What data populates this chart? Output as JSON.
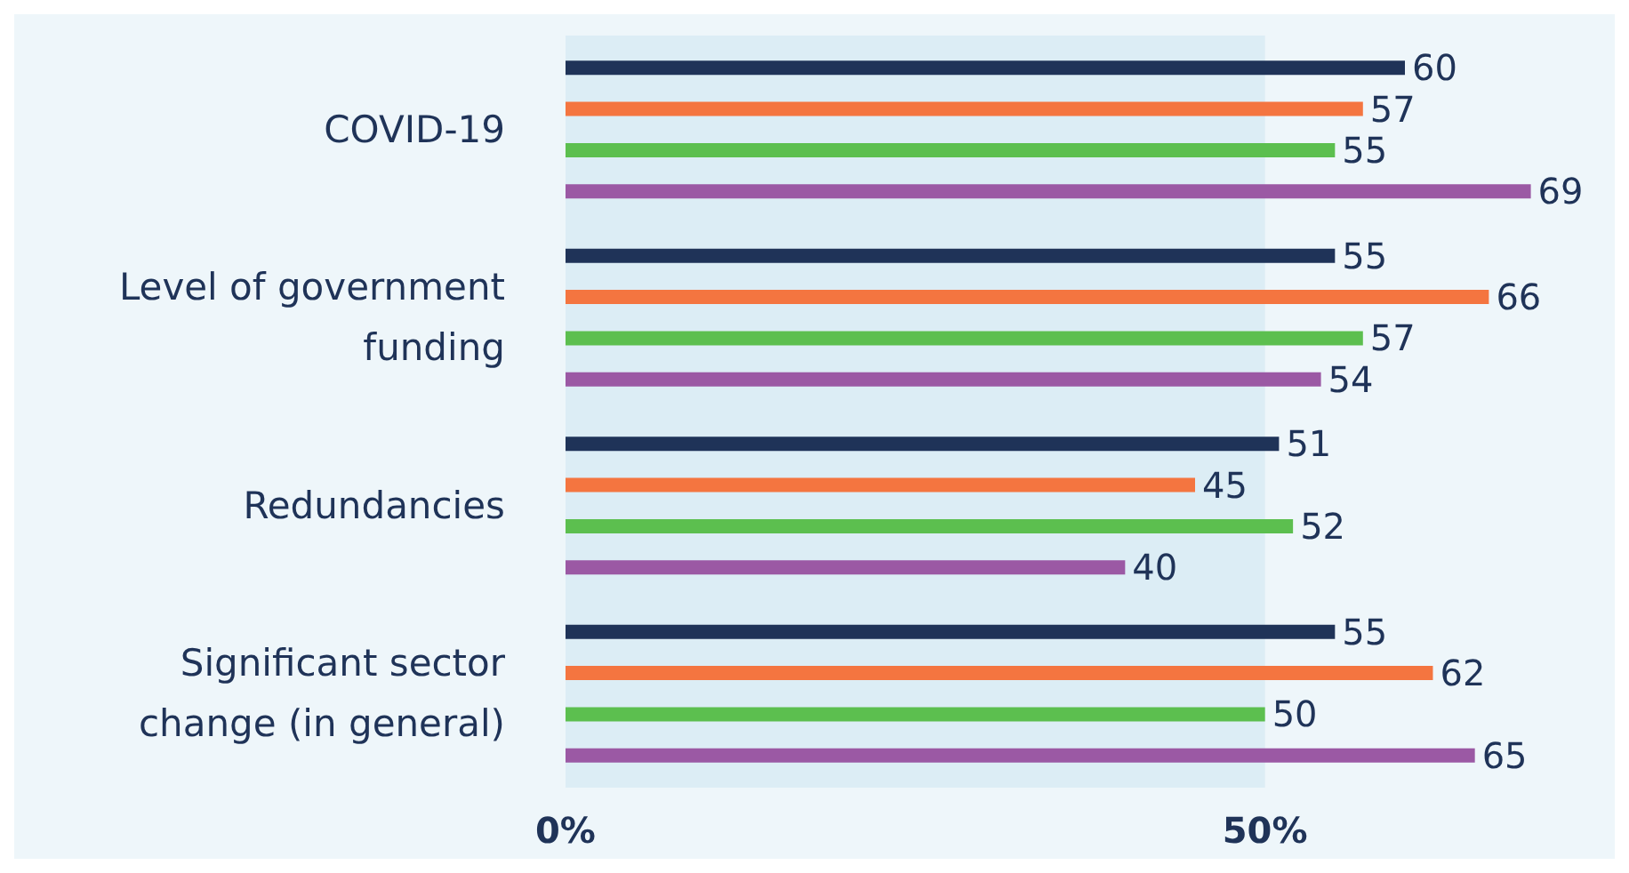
{
  "chart_data": {
    "type": "bar",
    "orientation": "horizontal",
    "categories": [
      "COVID-19",
      "Level of government\nfunding",
      "Redundancies",
      "Significant sector\nchange (in general)"
    ],
    "series": [
      {
        "color": "#1f3358",
        "values": [
          60,
          55,
          51,
          55
        ]
      },
      {
        "color": "#f47540",
        "values": [
          57,
          66,
          45,
          62
        ]
      },
      {
        "color": "#5cbf4f",
        "values": [
          55,
          57,
          52,
          50
        ]
      },
      {
        "color": "#9b59a4",
        "values": [
          69,
          54,
          40,
          65
        ]
      }
    ],
    "xlim": [
      0,
      75
    ],
    "xticks": [
      {
        "value": 0,
        "label": "0%"
      },
      {
        "value": 50,
        "label": "50%"
      }
    ],
    "bands": [
      {
        "axis": "x",
        "from": 0,
        "to": 50,
        "color": "#dcedf5"
      }
    ],
    "data_labels": true,
    "grid": false
  }
}
